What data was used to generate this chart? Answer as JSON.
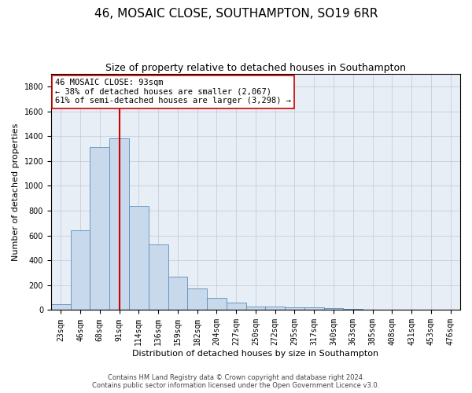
{
  "title": "46, MOSAIC CLOSE, SOUTHAMPTON, SO19 6RR",
  "subtitle": "Size of property relative to detached houses in Southampton",
  "xlabel": "Distribution of detached houses by size in Southampton",
  "ylabel": "Number of detached properties",
  "categories": [
    "23sqm",
    "46sqm",
    "68sqm",
    "91sqm",
    "114sqm",
    "136sqm",
    "159sqm",
    "182sqm",
    "204sqm",
    "227sqm",
    "250sqm",
    "272sqm",
    "295sqm",
    "317sqm",
    "340sqm",
    "363sqm",
    "385sqm",
    "408sqm",
    "431sqm",
    "453sqm",
    "476sqm"
  ],
  "values": [
    50,
    640,
    1310,
    1380,
    840,
    530,
    270,
    175,
    100,
    60,
    30,
    30,
    25,
    20,
    15,
    10,
    5,
    5,
    3,
    2,
    2
  ],
  "bar_color": "#c9d9ec",
  "bar_edge_color": "#5b8db8",
  "vline_x": 3,
  "vline_color": "#cc0000",
  "annotation_line1": "46 MOSAIC CLOSE: 93sqm",
  "annotation_line2": "← 38% of detached houses are smaller (2,067)",
  "annotation_line3": "61% of semi-detached houses are larger (3,298) →",
  "annotation_box_color": "#ffffff",
  "annotation_box_edge": "#cc0000",
  "ylim": [
    0,
    1900
  ],
  "yticks": [
    0,
    200,
    400,
    600,
    800,
    1000,
    1200,
    1400,
    1600,
    1800
  ],
  "footer_line1": "Contains HM Land Registry data © Crown copyright and database right 2024.",
  "footer_line2": "Contains public sector information licensed under the Open Government Licence v3.0.",
  "title_fontsize": 11,
  "subtitle_fontsize": 9,
  "tick_fontsize": 7,
  "ylabel_fontsize": 8,
  "xlabel_fontsize": 8,
  "annotation_fontsize": 7.5,
  "footer_fontsize": 6,
  "bg_color": "#e8eef5"
}
